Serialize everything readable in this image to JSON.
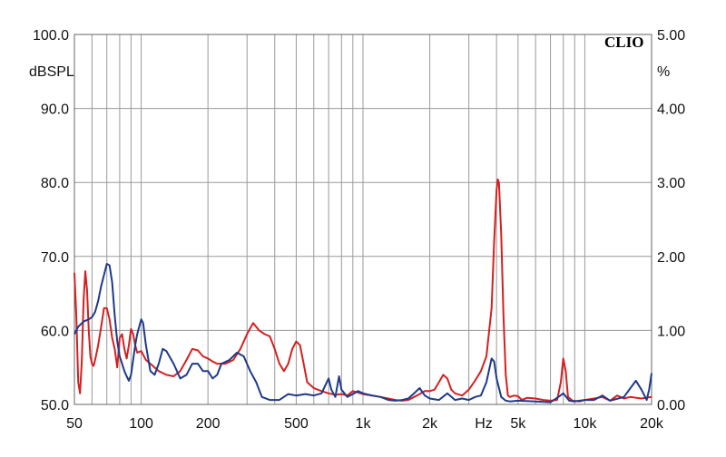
{
  "chart_data": {
    "type": "line",
    "title": "",
    "brand": "CLIO",
    "xscale": "log",
    "xlim": [
      50,
      20000
    ],
    "x_ticks": [
      {
        "value": 50,
        "label": "50"
      },
      {
        "value": 100,
        "label": "100"
      },
      {
        "value": 200,
        "label": "200"
      },
      {
        "value": 500,
        "label": "500"
      },
      {
        "value": 1000,
        "label": "1k"
      },
      {
        "value": 2000,
        "label": "2k"
      },
      {
        "value": 3500,
        "label": "Hz"
      },
      {
        "value": 5000,
        "label": "5k"
      },
      {
        "value": 10000,
        "label": "10k"
      },
      {
        "value": 20000,
        "label": "20k"
      }
    ],
    "x_grid": [
      50,
      60,
      70,
      80,
      90,
      100,
      200,
      300,
      400,
      500,
      600,
      700,
      800,
      900,
      1000,
      2000,
      3000,
      4000,
      5000,
      6000,
      7000,
      8000,
      9000,
      10000,
      20000
    ],
    "y_left": {
      "unit": "dBSPL",
      "lim": [
        50,
        100
      ],
      "ticks": [
        {
          "value": 50,
          "label": "50.0"
        },
        {
          "value": 60,
          "label": "60.0"
        },
        {
          "value": 70,
          "label": "70.0"
        },
        {
          "value": 80,
          "label": "80.0"
        },
        {
          "value": 90,
          "label": "90.0"
        },
        {
          "value": 100,
          "label": "100.0"
        }
      ]
    },
    "y_right": {
      "unit": "%",
      "lim": [
        0,
        5
      ],
      "ticks": [
        {
          "value": 0,
          "label": "0.00"
        },
        {
          "value": 1,
          "label": "1.00"
        },
        {
          "value": 2,
          "label": "2.00"
        },
        {
          "value": 3,
          "label": "3.00"
        },
        {
          "value": 4,
          "label": "4.00"
        },
        {
          "value": 5,
          "label": "5.00"
        }
      ]
    },
    "grid": true,
    "series": [
      {
        "color": "#d42020",
        "axis": "right",
        "points": [
          [
            50,
            1.78
          ],
          [
            51,
            1.2
          ],
          [
            52,
            0.3
          ],
          [
            53,
            0.15
          ],
          [
            54,
            0.6
          ],
          [
            55,
            1.4
          ],
          [
            56,
            1.8
          ],
          [
            57,
            1.55
          ],
          [
            58,
            1.0
          ],
          [
            59,
            0.65
          ],
          [
            60,
            0.55
          ],
          [
            61,
            0.52
          ],
          [
            62,
            0.6
          ],
          [
            64,
            0.8
          ],
          [
            66,
            1.05
          ],
          [
            68,
            1.3
          ],
          [
            70,
            1.3
          ],
          [
            72,
            1.15
          ],
          [
            74,
            0.9
          ],
          [
            76,
            0.75
          ],
          [
            78,
            0.5
          ],
          [
            80,
            0.9
          ],
          [
            82,
            0.95
          ],
          [
            84,
            0.75
          ],
          [
            86,
            0.62
          ],
          [
            88,
            0.8
          ],
          [
            90,
            1.02
          ],
          [
            92,
            0.95
          ],
          [
            94,
            0.8
          ],
          [
            96,
            0.7
          ],
          [
            100,
            0.72
          ],
          [
            105,
            0.6
          ],
          [
            110,
            0.55
          ],
          [
            120,
            0.45
          ],
          [
            130,
            0.4
          ],
          [
            140,
            0.38
          ],
          [
            150,
            0.45
          ],
          [
            160,
            0.6
          ],
          [
            170,
            0.75
          ],
          [
            180,
            0.73
          ],
          [
            190,
            0.65
          ],
          [
            200,
            0.62
          ],
          [
            210,
            0.58
          ],
          [
            220,
            0.55
          ],
          [
            240,
            0.55
          ],
          [
            260,
            0.6
          ],
          [
            280,
            0.75
          ],
          [
            300,
            0.95
          ],
          [
            320,
            1.1
          ],
          [
            340,
            1.0
          ],
          [
            360,
            0.95
          ],
          [
            380,
            0.92
          ],
          [
            400,
            0.75
          ],
          [
            420,
            0.55
          ],
          [
            440,
            0.45
          ],
          [
            460,
            0.55
          ],
          [
            480,
            0.75
          ],
          [
            500,
            0.85
          ],
          [
            520,
            0.8
          ],
          [
            540,
            0.55
          ],
          [
            560,
            0.3
          ],
          [
            600,
            0.22
          ],
          [
            650,
            0.18
          ],
          [
            700,
            0.15
          ],
          [
            750,
            0.13
          ],
          [
            800,
            0.14
          ],
          [
            850,
            0.12
          ],
          [
            900,
            0.18
          ],
          [
            1000,
            0.14
          ],
          [
            1100,
            0.12
          ],
          [
            1200,
            0.1
          ],
          [
            1300,
            0.08
          ],
          [
            1400,
            0.06
          ],
          [
            1500,
            0.05
          ],
          [
            1600,
            0.06
          ],
          [
            1700,
            0.1
          ],
          [
            1800,
            0.14
          ],
          [
            1900,
            0.18
          ],
          [
            2000,
            0.18
          ],
          [
            2100,
            0.2
          ],
          [
            2200,
            0.3
          ],
          [
            2300,
            0.4
          ],
          [
            2400,
            0.35
          ],
          [
            2500,
            0.2
          ],
          [
            2600,
            0.15
          ],
          [
            2800,
            0.12
          ],
          [
            3000,
            0.2
          ],
          [
            3200,
            0.32
          ],
          [
            3400,
            0.45
          ],
          [
            3600,
            0.65
          ],
          [
            3800,
            1.3
          ],
          [
            3900,
            2.2
          ],
          [
            4000,
            2.9
          ],
          [
            4050,
            3.04
          ],
          [
            4100,
            3.0
          ],
          [
            4200,
            2.3
          ],
          [
            4300,
            1.2
          ],
          [
            4400,
            0.4
          ],
          [
            4500,
            0.12
          ],
          [
            4600,
            0.1
          ],
          [
            4800,
            0.12
          ],
          [
            5000,
            0.11
          ],
          [
            5200,
            0.06
          ],
          [
            5500,
            0.09
          ],
          [
            6000,
            0.08
          ],
          [
            6500,
            0.06
          ],
          [
            7000,
            0.05
          ],
          [
            7500,
            0.06
          ],
          [
            7800,
            0.3
          ],
          [
            8000,
            0.62
          ],
          [
            8200,
            0.45
          ],
          [
            8400,
            0.1
          ],
          [
            8800,
            0.05
          ],
          [
            9500,
            0.04
          ],
          [
            10000,
            0.06
          ],
          [
            11000,
            0.08
          ],
          [
            12000,
            0.1
          ],
          [
            13000,
            0.05
          ],
          [
            14000,
            0.12
          ],
          [
            15000,
            0.08
          ],
          [
            16000,
            0.1
          ],
          [
            18000,
            0.08
          ],
          [
            20000,
            0.1
          ]
        ]
      },
      {
        "color": "#1e3a8a",
        "axis": "right",
        "points": [
          [
            50,
            0.95
          ],
          [
            52,
            1.05
          ],
          [
            55,
            1.12
          ],
          [
            58,
            1.15
          ],
          [
            60,
            1.18
          ],
          [
            62,
            1.25
          ],
          [
            64,
            1.4
          ],
          [
            66,
            1.6
          ],
          [
            68,
            1.75
          ],
          [
            70,
            1.9
          ],
          [
            72,
            1.88
          ],
          [
            74,
            1.65
          ],
          [
            76,
            1.2
          ],
          [
            78,
            0.85
          ],
          [
            80,
            0.65
          ],
          [
            82,
            0.55
          ],
          [
            84,
            0.45
          ],
          [
            86,
            0.38
          ],
          [
            88,
            0.32
          ],
          [
            90,
            0.4
          ],
          [
            92,
            0.6
          ],
          [
            94,
            0.8
          ],
          [
            96,
            0.95
          ],
          [
            98,
            1.05
          ],
          [
            100,
            1.15
          ],
          [
            102,
            1.1
          ],
          [
            105,
            0.8
          ],
          [
            110,
            0.45
          ],
          [
            115,
            0.4
          ],
          [
            120,
            0.55
          ],
          [
            125,
            0.75
          ],
          [
            130,
            0.72
          ],
          [
            140,
            0.55
          ],
          [
            150,
            0.35
          ],
          [
            160,
            0.4
          ],
          [
            170,
            0.55
          ],
          [
            180,
            0.55
          ],
          [
            190,
            0.45
          ],
          [
            200,
            0.45
          ],
          [
            210,
            0.35
          ],
          [
            220,
            0.4
          ],
          [
            230,
            0.55
          ],
          [
            250,
            0.6
          ],
          [
            270,
            0.7
          ],
          [
            290,
            0.65
          ],
          [
            310,
            0.45
          ],
          [
            330,
            0.3
          ],
          [
            350,
            0.1
          ],
          [
            380,
            0.06
          ],
          [
            420,
            0.06
          ],
          [
            460,
            0.14
          ],
          [
            500,
            0.12
          ],
          [
            550,
            0.14
          ],
          [
            600,
            0.12
          ],
          [
            650,
            0.15
          ],
          [
            700,
            0.35
          ],
          [
            720,
            0.2
          ],
          [
            750,
            0.1
          ],
          [
            780,
            0.38
          ],
          [
            800,
            0.2
          ],
          [
            850,
            0.1
          ],
          [
            900,
            0.14
          ],
          [
            950,
            0.18
          ],
          [
            1000,
            0.15
          ],
          [
            1100,
            0.12
          ],
          [
            1200,
            0.1
          ],
          [
            1300,
            0.06
          ],
          [
            1400,
            0.05
          ],
          [
            1500,
            0.06
          ],
          [
            1600,
            0.08
          ],
          [
            1700,
            0.15
          ],
          [
            1800,
            0.22
          ],
          [
            1900,
            0.12
          ],
          [
            2000,
            0.08
          ],
          [
            2200,
            0.06
          ],
          [
            2400,
            0.15
          ],
          [
            2600,
            0.06
          ],
          [
            2800,
            0.08
          ],
          [
            3000,
            0.06
          ],
          [
            3200,
            0.1
          ],
          [
            3400,
            0.12
          ],
          [
            3600,
            0.3
          ],
          [
            3800,
            0.62
          ],
          [
            3900,
            0.58
          ],
          [
            4000,
            0.35
          ],
          [
            4200,
            0.1
          ],
          [
            4400,
            0.05
          ],
          [
            4600,
            0.04
          ],
          [
            5000,
            0.05
          ],
          [
            6000,
            0.04
          ],
          [
            7000,
            0.03
          ],
          [
            7600,
            0.1
          ],
          [
            8000,
            0.15
          ],
          [
            8500,
            0.05
          ],
          [
            9000,
            0.04
          ],
          [
            10000,
            0.06
          ],
          [
            11000,
            0.06
          ],
          [
            12000,
            0.12
          ],
          [
            13000,
            0.05
          ],
          [
            15000,
            0.1
          ],
          [
            17000,
            0.32
          ],
          [
            18000,
            0.2
          ],
          [
            19000,
            0.06
          ],
          [
            19500,
            0.2
          ],
          [
            20000,
            0.42
          ]
        ]
      }
    ]
  }
}
